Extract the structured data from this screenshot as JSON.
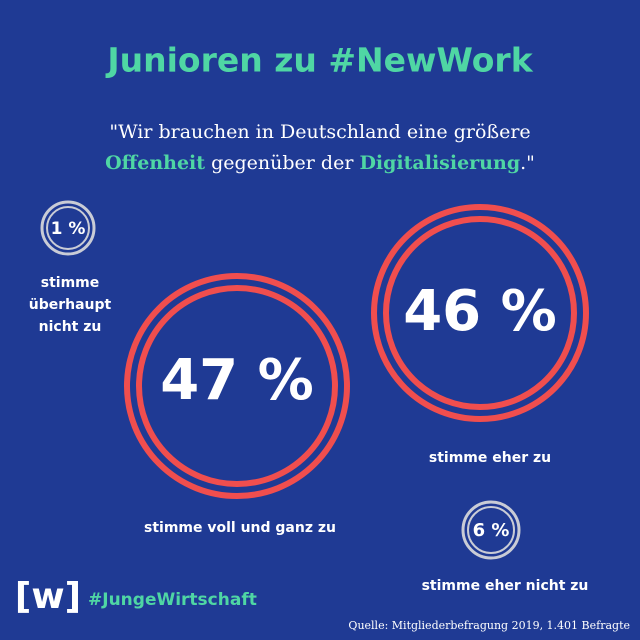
{
  "header": {
    "title": "Junioren zu #NewWork"
  },
  "quote": {
    "line1": "\"Wir brauchen in Deutschland eine größere",
    "line2": [
      "Offenheit",
      " gegenüber der ",
      "Digitalisierung",
      ".\""
    ]
  },
  "items": [
    {
      "value": "1 %",
      "label": [
        "stimme",
        "überhaupt",
        "nicht zu"
      ]
    },
    {
      "value": "47 %",
      "label": [
        "stimme voll und ganz zu"
      ]
    },
    {
      "value": "46 %",
      "label": [
        "stimme eher zu"
      ]
    },
    {
      "value": "6 %",
      "label": [
        "stimme eher nicht zu"
      ]
    }
  ],
  "footer": {
    "logo": "[w]",
    "hashtag": "#JungeWirtschaft",
    "source": "Quelle: Mitgliederbefragung 2019, 1.401 Befragte"
  }
}
